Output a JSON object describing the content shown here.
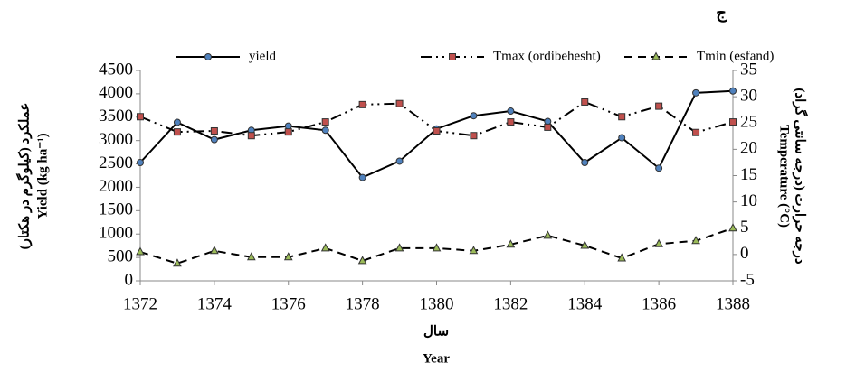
{
  "chart_data": {
    "type": "line",
    "title": "ج",
    "x_label": "Year",
    "x_label_fa": "سال",
    "y_label": "Yield (kg ha⁻¹)",
    "y_label_fa": "عملکرد (کیلوگرم در هکتار)",
    "y2_label": "Temperature (°C)",
    "y2_label_fa": "درجه حرارت (درجه سانتی گراد)",
    "x": [
      1372,
      1373,
      1374,
      1375,
      1376,
      1377,
      1378,
      1379,
      1380,
      1381,
      1382,
      1383,
      1384,
      1385,
      1386,
      1387,
      1388
    ],
    "xlim": [
      1372,
      1388
    ],
    "xticks": [
      1372,
      1374,
      1376,
      1378,
      1380,
      1382,
      1384,
      1386,
      1388
    ],
    "ylim": [
      0,
      4500
    ],
    "yticks": [
      0,
      500,
      1000,
      1500,
      2000,
      2500,
      3000,
      3500,
      4000,
      4500
    ],
    "y2lim": [
      -5,
      35
    ],
    "y2ticks": [
      -5,
      0,
      5,
      10,
      15,
      20,
      25,
      30,
      35
    ],
    "legend": "top",
    "series": [
      {
        "name": "yield",
        "color": "#000000",
        "marker": "circle",
        "marker_color": "#4f81bd",
        "dash": "solid",
        "values": [
          2530,
          3390,
          3020,
          3220,
          3310,
          3220,
          2210,
          2560,
          3250,
          3530,
          3630,
          3410,
          2530,
          3060,
          2410,
          4020,
          4060
        ]
      },
      {
        "name": "Tmax (ordibehesht)",
        "color": "#000000",
        "marker": "square",
        "marker_color": "#c0504d",
        "dash": "dashdotdot",
        "axis": "y2",
        "values": [
          26.2,
          23.3,
          23.5,
          22.6,
          23.3,
          25.2,
          28.5,
          28.7,
          23.5,
          22.6,
          25.2,
          24.2,
          29,
          26.2,
          28.2,
          23.2,
          25.2
        ]
      },
      {
        "name": "Tmin (esfand)",
        "color": "#000000",
        "marker": "triangle",
        "marker_color": "#9bbb59",
        "dash": "dashed",
        "axis": "y2",
        "values": [
          0.5,
          -1.7,
          0.7,
          -0.5,
          -0.5,
          1.2,
          -1.2,
          1.2,
          1.2,
          0.7,
          1.9,
          3.6,
          1.7,
          -0.7,
          2.0,
          2.6,
          5.0
        ]
      }
    ]
  }
}
